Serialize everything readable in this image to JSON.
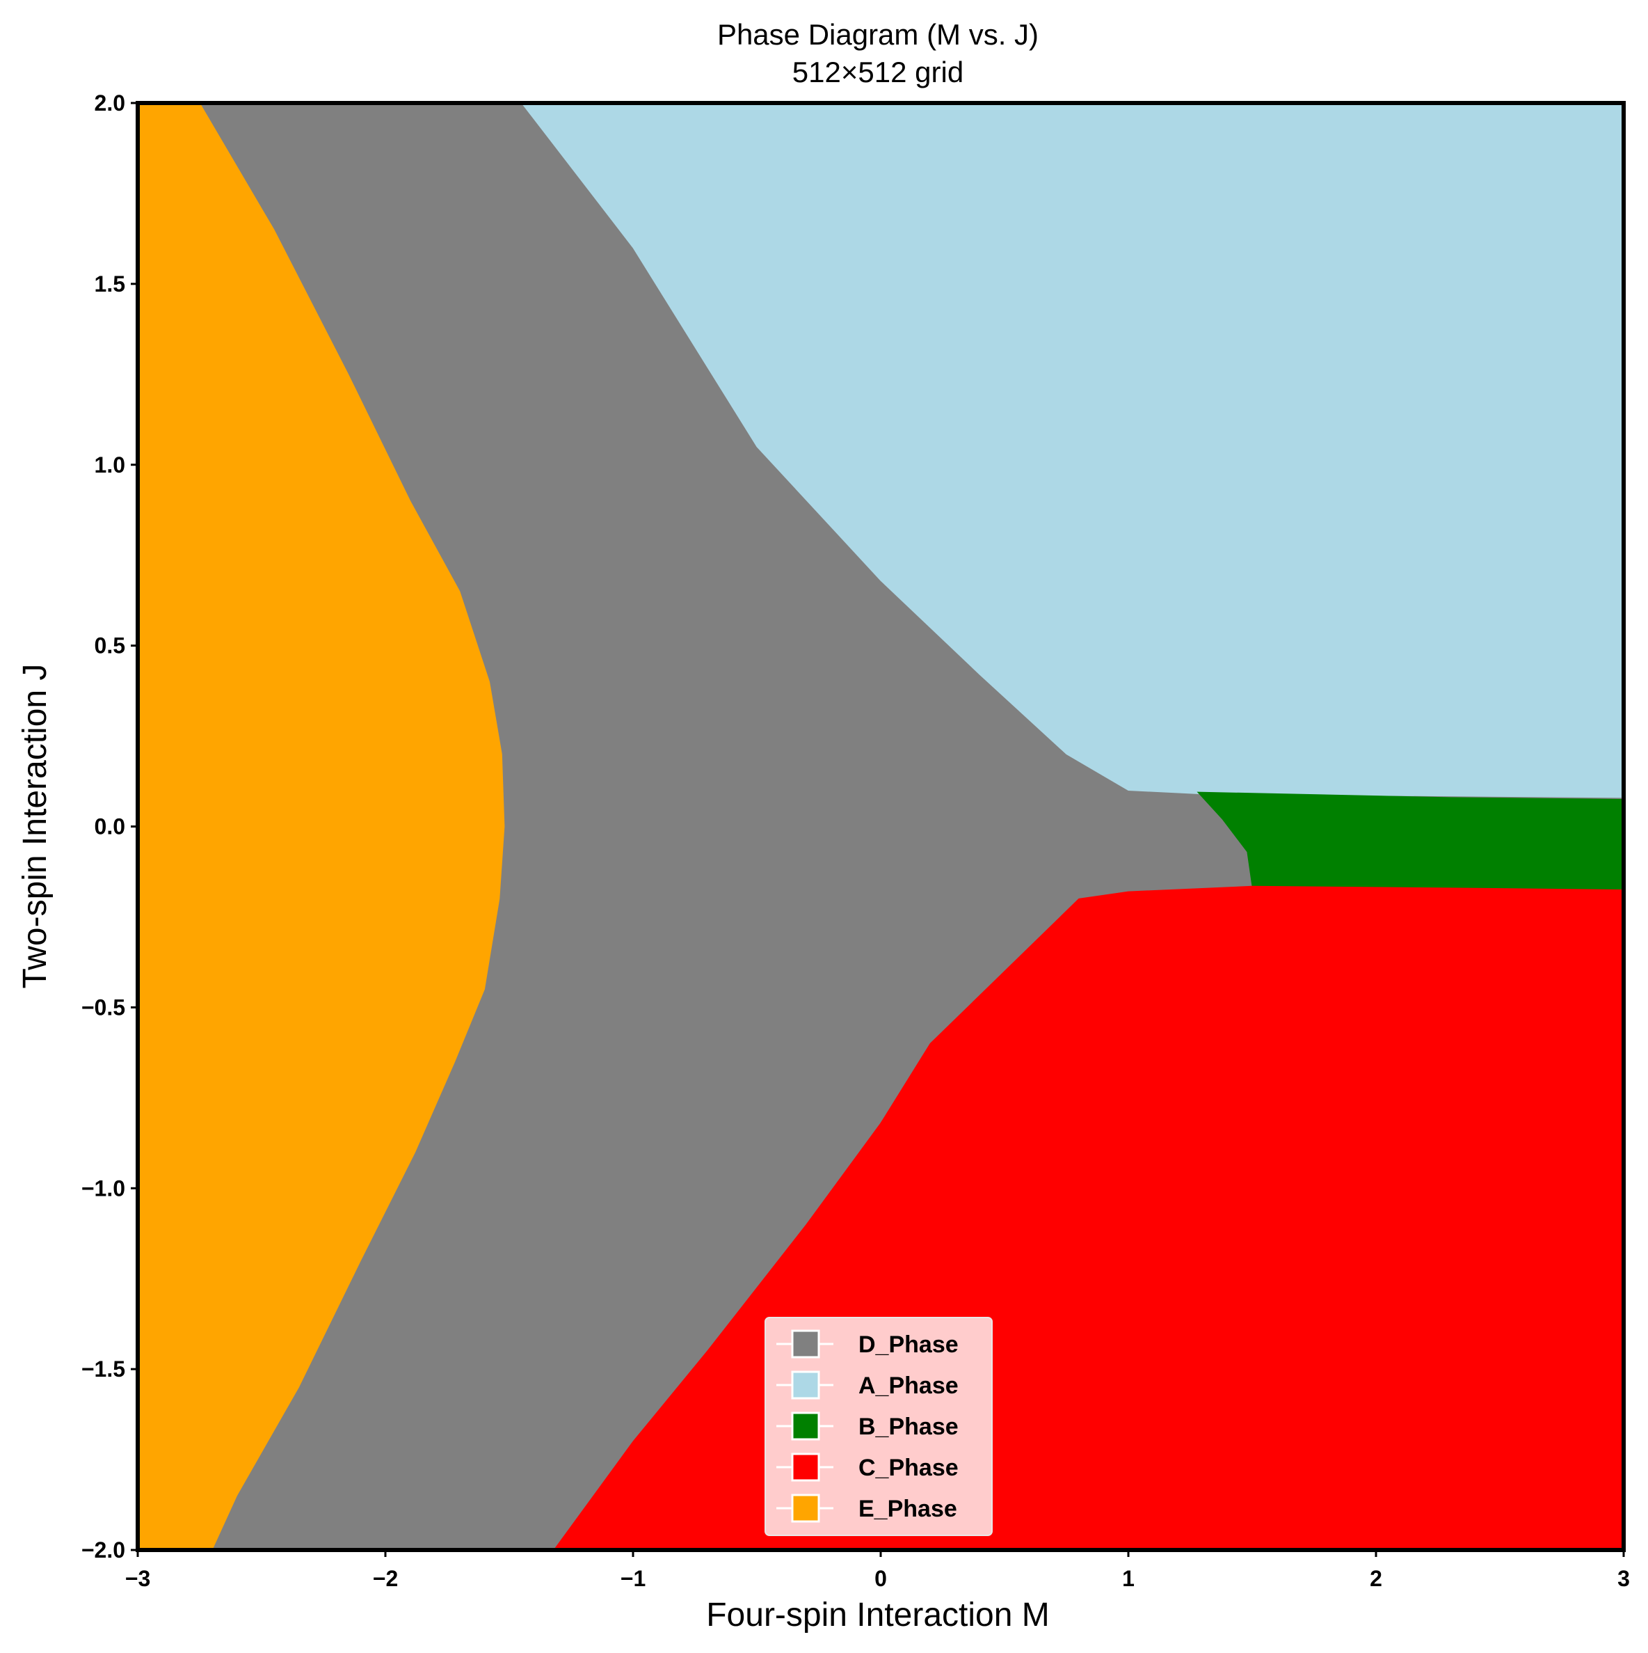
{
  "chart_data": {
    "type": "heatmap",
    "title": "Phase Diagram (M vs. J)",
    "subtitle": "512×512 grid",
    "xlabel": "Four-spin Interaction M",
    "ylabel": "Two-spin Interaction J",
    "xlim": [
      -3,
      3
    ],
    "ylim": [
      -2,
      2
    ],
    "x_ticks": [
      -3,
      -2,
      -1,
      0,
      1,
      2,
      3
    ],
    "y_ticks": [
      -2.0,
      -1.5,
      -1.0,
      -0.5,
      0.0,
      0.5,
      1.0,
      1.5,
      2.0
    ],
    "x_tick_labels": [
      "−3",
      "−2",
      "−1",
      "0",
      "1",
      "2",
      "3"
    ],
    "y_tick_labels": [
      "−2.0",
      "−1.5",
      "−1.0",
      "−0.5",
      "0.0",
      "0.5",
      "1.0",
      "1.5",
      "2.0"
    ],
    "grid": false,
    "legend_position": "bottom-center",
    "background_phase": "D_Phase",
    "regions": [
      {
        "name": "A_Phase",
        "color": "#add8e6",
        "polygon": [
          [
            -1.45,
            2.0
          ],
          [
            3.0,
            2.0
          ],
          [
            3.0,
            0.08
          ],
          [
            1.3,
            0.09
          ],
          [
            1.0,
            0.1
          ],
          [
            0.75,
            0.2
          ],
          [
            0.4,
            0.42
          ],
          [
            0.0,
            0.68
          ],
          [
            -0.5,
            1.05
          ],
          [
            -1.0,
            1.6
          ],
          [
            -1.45,
            2.0
          ]
        ]
      },
      {
        "name": "B_Phase",
        "color": "#008000",
        "polygon": [
          [
            1.28,
            0.095
          ],
          [
            2.3,
            0.08
          ],
          [
            3.0,
            0.075
          ],
          [
            3.0,
            -0.175
          ],
          [
            2.3,
            -0.17
          ],
          [
            1.5,
            -0.165
          ],
          [
            1.48,
            -0.07
          ],
          [
            1.38,
            0.02
          ]
        ]
      },
      {
        "name": "C_Phase",
        "color": "#ff0000",
        "polygon": [
          [
            -1.32,
            -2.0
          ],
          [
            3.0,
            -2.0
          ],
          [
            3.0,
            -0.175
          ],
          [
            2.3,
            -0.17
          ],
          [
            1.5,
            -0.165
          ],
          [
            1.0,
            -0.18
          ],
          [
            0.8,
            -0.2
          ],
          [
            0.5,
            -0.4
          ],
          [
            0.2,
            -0.6
          ],
          [
            0.0,
            -0.82
          ],
          [
            -0.3,
            -1.1
          ],
          [
            -0.7,
            -1.45
          ],
          [
            -1.0,
            -1.7
          ],
          [
            -1.32,
            -2.0
          ]
        ]
      },
      {
        "name": "E_Phase",
        "color": "#ffa500",
        "polygon": [
          [
            -3.0,
            2.0
          ],
          [
            -2.75,
            2.0
          ],
          [
            -2.45,
            1.65
          ],
          [
            -2.15,
            1.25
          ],
          [
            -1.9,
            0.9
          ],
          [
            -1.7,
            0.65
          ],
          [
            -1.58,
            0.4
          ],
          [
            -1.53,
            0.2
          ],
          [
            -1.52,
            0.0
          ],
          [
            -1.54,
            -0.2
          ],
          [
            -1.6,
            -0.45
          ],
          [
            -1.72,
            -0.65
          ],
          [
            -1.88,
            -0.9
          ],
          [
            -2.1,
            -1.2
          ],
          [
            -2.35,
            -1.55
          ],
          [
            -2.6,
            -1.85
          ],
          [
            -2.7,
            -2.0
          ],
          [
            -3.0,
            -2.0
          ]
        ]
      }
    ],
    "legend": [
      {
        "label": "D_Phase",
        "color": "#808080"
      },
      {
        "label": "A_Phase",
        "color": "#add8e6"
      },
      {
        "label": "B_Phase",
        "color": "#008000"
      },
      {
        "label": "C_Phase",
        "color": "#ff0000"
      },
      {
        "label": "E_Phase",
        "color": "#ffa500"
      }
    ],
    "colors": {
      "D_Phase": "#808080",
      "legend_background": "#ffcccc",
      "axis": "#000000"
    }
  }
}
